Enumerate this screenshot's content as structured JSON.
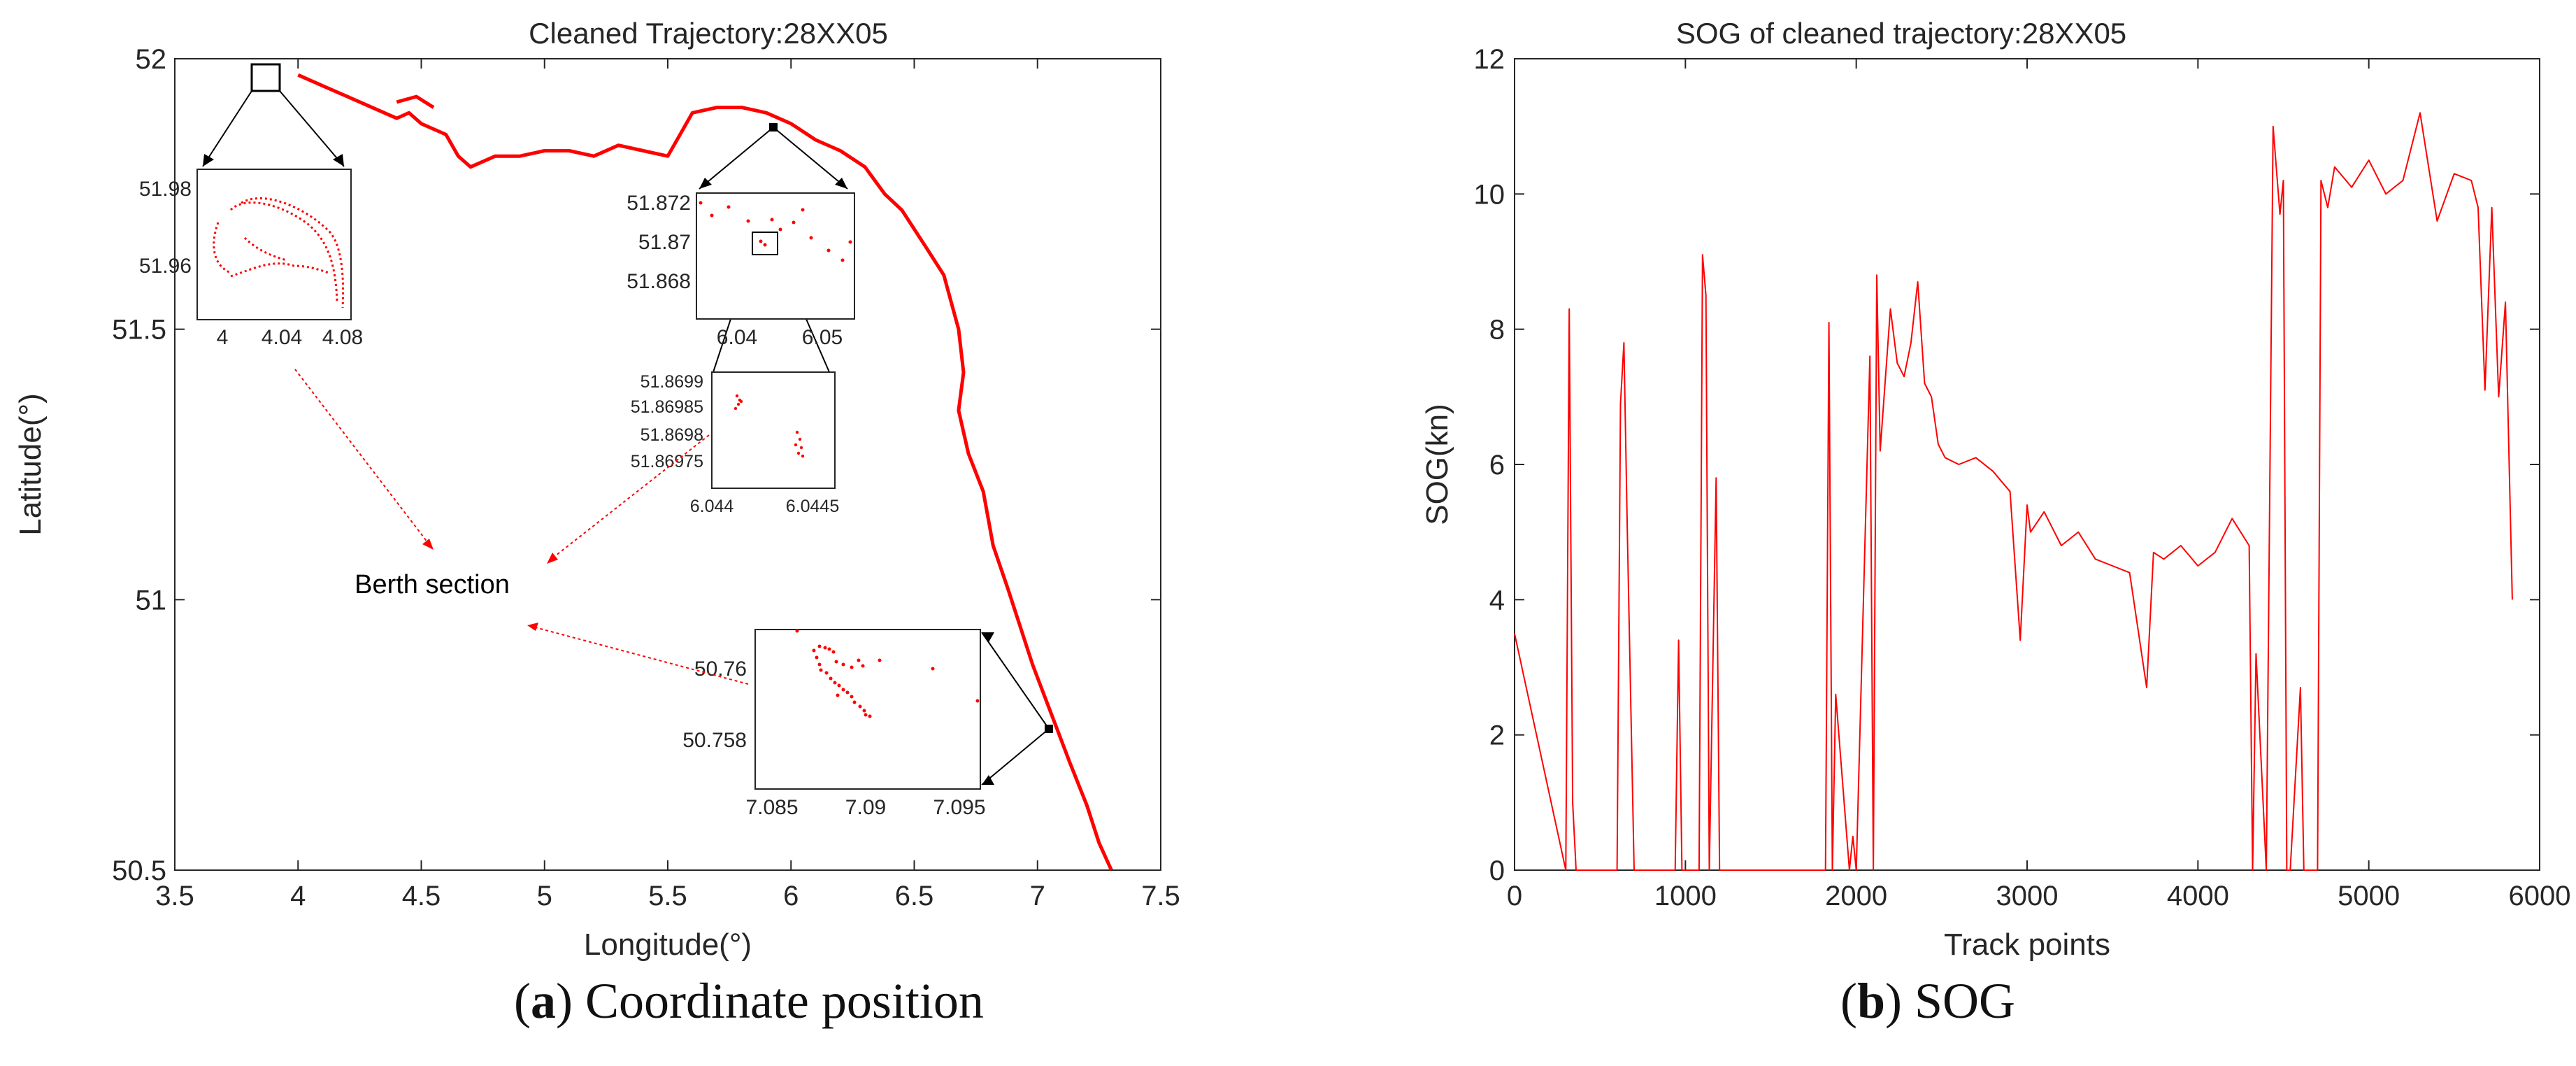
{
  "chart_data": [
    {
      "type": "scatter",
      "title": "Cleaned Trajectory:28XX05",
      "xlabel": "Longitude(°)",
      "ylabel": "Latitude(°)",
      "xlim": [
        3.5,
        7.5
      ],
      "ylim": [
        50.5,
        52
      ],
      "xticks": [
        "3.5",
        "4",
        "4.5",
        "5",
        "5.5",
        "6",
        "6.5",
        "7",
        "7.5"
      ],
      "yticks": [
        "50.5",
        "51",
        "51.5",
        "52"
      ],
      "series": [
        {
          "name": "trajectory",
          "color": "#ff0000",
          "points": [
            [
              4.0,
              51.97
            ],
            [
              4.05,
              51.96
            ],
            [
              4.1,
              51.95
            ],
            [
              4.2,
              51.93
            ],
            [
              4.3,
              51.91
            ],
            [
              4.4,
              51.89
            ],
            [
              4.45,
              51.9
            ],
            [
              4.5,
              51.88
            ],
            [
              4.6,
              51.86
            ],
            [
              4.65,
              51.82
            ],
            [
              4.7,
              51.8
            ],
            [
              4.8,
              51.82
            ],
            [
              4.9,
              51.82
            ],
            [
              5.0,
              51.83
            ],
            [
              5.1,
              51.83
            ],
            [
              5.2,
              51.82
            ],
            [
              5.3,
              51.84
            ],
            [
              5.4,
              51.83
            ],
            [
              5.5,
              51.82
            ],
            [
              5.55,
              51.86
            ],
            [
              5.6,
              51.9
            ],
            [
              5.7,
              51.91
            ],
            [
              5.8,
              51.91
            ],
            [
              5.9,
              51.9
            ],
            [
              6.0,
              51.88
            ],
            [
              6.1,
              51.85
            ],
            [
              6.2,
              51.83
            ],
            [
              6.3,
              51.8
            ],
            [
              6.38,
              51.75
            ],
            [
              6.45,
              51.72
            ],
            [
              6.55,
              51.65
            ],
            [
              6.62,
              51.6
            ],
            [
              6.68,
              51.5
            ],
            [
              6.7,
              51.42
            ],
            [
              6.68,
              51.35
            ],
            [
              6.72,
              51.27
            ],
            [
              6.78,
              51.2
            ],
            [
              6.82,
              51.1
            ],
            [
              6.88,
              51.02
            ],
            [
              6.93,
              50.95
            ],
            [
              6.98,
              50.88
            ],
            [
              7.03,
              50.82
            ],
            [
              7.08,
              50.76
            ],
            [
              7.13,
              50.7
            ],
            [
              7.2,
              50.62
            ],
            [
              7.25,
              50.55
            ],
            [
              7.3,
              50.5
            ]
          ]
        },
        {
          "name": "start-segment",
          "color": "#ff0000",
          "points": [
            [
              4.4,
              51.92
            ],
            [
              4.48,
              51.93
            ],
            [
              4.55,
              51.91
            ]
          ]
        }
      ],
      "insets": [
        {
          "xticks": [
            "4",
            "4.04",
            "4.08"
          ],
          "yticks": [
            "51.96",
            "51.98"
          ]
        },
        {
          "xticks": [
            "6.04",
            "6.05"
          ],
          "yticks": [
            "51.868",
            "51.87",
            "51.872"
          ]
        },
        {
          "xticks": [
            "6.044",
            "6.0445"
          ],
          "yticks": [
            "51.86975",
            "51.8698",
            "51.86985",
            "51.8699"
          ]
        },
        {
          "xticks": [
            "7.085",
            "7.09",
            "7.095"
          ],
          "yticks": [
            "50.758",
            "50.76"
          ]
        }
      ],
      "annotation": "Berth section",
      "caption_letter": "a",
      "caption_text": " Coordinate position"
    },
    {
      "type": "line",
      "title": "SOG of cleaned trajectory:28XX05",
      "xlabel": "Track points",
      "ylabel": "SOG(kn)",
      "xlim": [
        0,
        6000
      ],
      "ylim": [
        0,
        12
      ],
      "xticks": [
        "0",
        "1000",
        "2000",
        "3000",
        "4000",
        "5000",
        "6000"
      ],
      "yticks": [
        "0",
        "2",
        "4",
        "6",
        "8",
        "10",
        "12"
      ],
      "series": [
        {
          "name": "SOG",
          "color": "#ff0000",
          "x": [
            0,
            300,
            320,
            340,
            360,
            600,
            620,
            640,
            660,
            700,
            720,
            940,
            960,
            980,
            1000,
            1080,
            1100,
            1120,
            1140,
            1180,
            1200,
            1220,
            1240,
            1820,
            1840,
            1860,
            1880,
            1960,
            1980,
            2000,
            2080,
            2100,
            2120,
            2140,
            2200,
            2240,
            2280,
            2320,
            2360,
            2400,
            2440,
            2480,
            2520,
            2600,
            2700,
            2800,
            2900,
            2960,
            3000,
            3020,
            3100,
            3200,
            3300,
            3400,
            3500,
            3600,
            3700,
            3740,
            3800,
            3900,
            4000,
            4100,
            4200,
            4300,
            4320,
            4340,
            4400,
            4440,
            4480,
            4500,
            4520,
            4540,
            4600,
            4620,
            4700,
            4720,
            4760,
            4800,
            4900,
            5000,
            5100,
            5200,
            5300,
            5400,
            5500,
            5600,
            5640,
            5680,
            5720,
            5760,
            5800,
            5840
          ],
          "values": [
            3.5,
            0,
            8.3,
            1,
            0,
            0,
            6.9,
            7.8,
            5,
            0,
            0,
            0,
            3.4,
            0,
            0,
            0,
            9.1,
            8.5,
            0,
            5.8,
            0,
            0,
            0,
            0,
            8.1,
            0,
            2.6,
            0,
            0.5,
            0,
            7.6,
            0,
            8.8,
            6.2,
            8.3,
            7.5,
            7.3,
            7.8,
            8.7,
            7.2,
            7.0,
            6.3,
            6.1,
            6.0,
            6.1,
            5.9,
            5.6,
            3.4,
            5.4,
            5.0,
            5.3,
            4.8,
            5.0,
            4.6,
            4.5,
            4.4,
            2.7,
            4.7,
            4.6,
            4.8,
            4.5,
            4.7,
            5.2,
            4.8,
            0,
            3.2,
            0,
            11.0,
            9.7,
            10.2,
            0,
            0,
            2.7,
            0,
            0,
            10.2,
            9.8,
            10.4,
            10.1,
            10.5,
            10.0,
            10.2,
            11.2,
            9.6,
            10.3,
            10.2,
            9.8,
            7.1,
            9.8,
            7.0,
            8.4,
            4.0
          ]
        }
      ],
      "caption_letter": "b",
      "caption_text": " SOG"
    }
  ]
}
